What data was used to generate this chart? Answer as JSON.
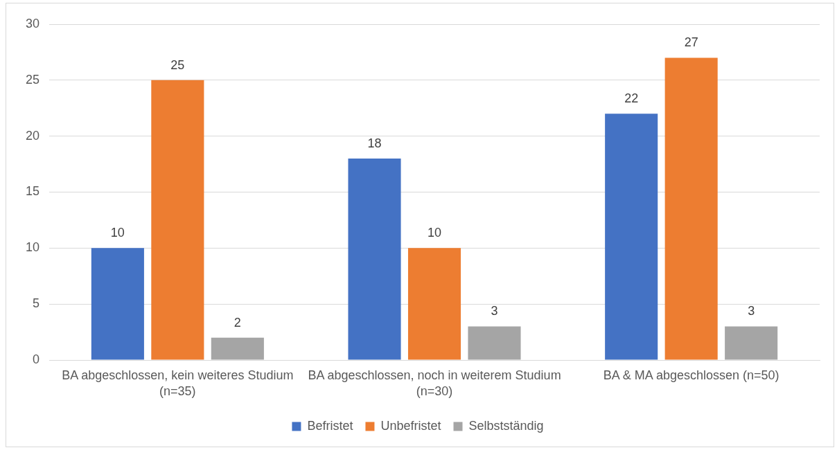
{
  "chart_data": {
    "type": "bar",
    "categories": [
      "BA abgeschlossen, kein weiteres Studium (n=35)",
      "BA abgeschlossen, noch in weiterem Studium (n=30)",
      "BA & MA abgeschlossen (n=50)"
    ],
    "series": [
      {
        "name": "Befristet",
        "color": "#4472c4",
        "values": [
          10,
          18,
          22
        ]
      },
      {
        "name": "Unbefristet",
        "color": "#ed7d31",
        "values": [
          25,
          10,
          27
        ]
      },
      {
        "name": "Selbstständig",
        "color": "#a5a5a5",
        "values": [
          2,
          3,
          3
        ]
      }
    ],
    "ylim": [
      0,
      30
    ],
    "yticks": [
      0,
      5,
      10,
      15,
      20,
      25,
      30
    ],
    "grid": "y",
    "legend": "bottom",
    "data_labels": true
  }
}
